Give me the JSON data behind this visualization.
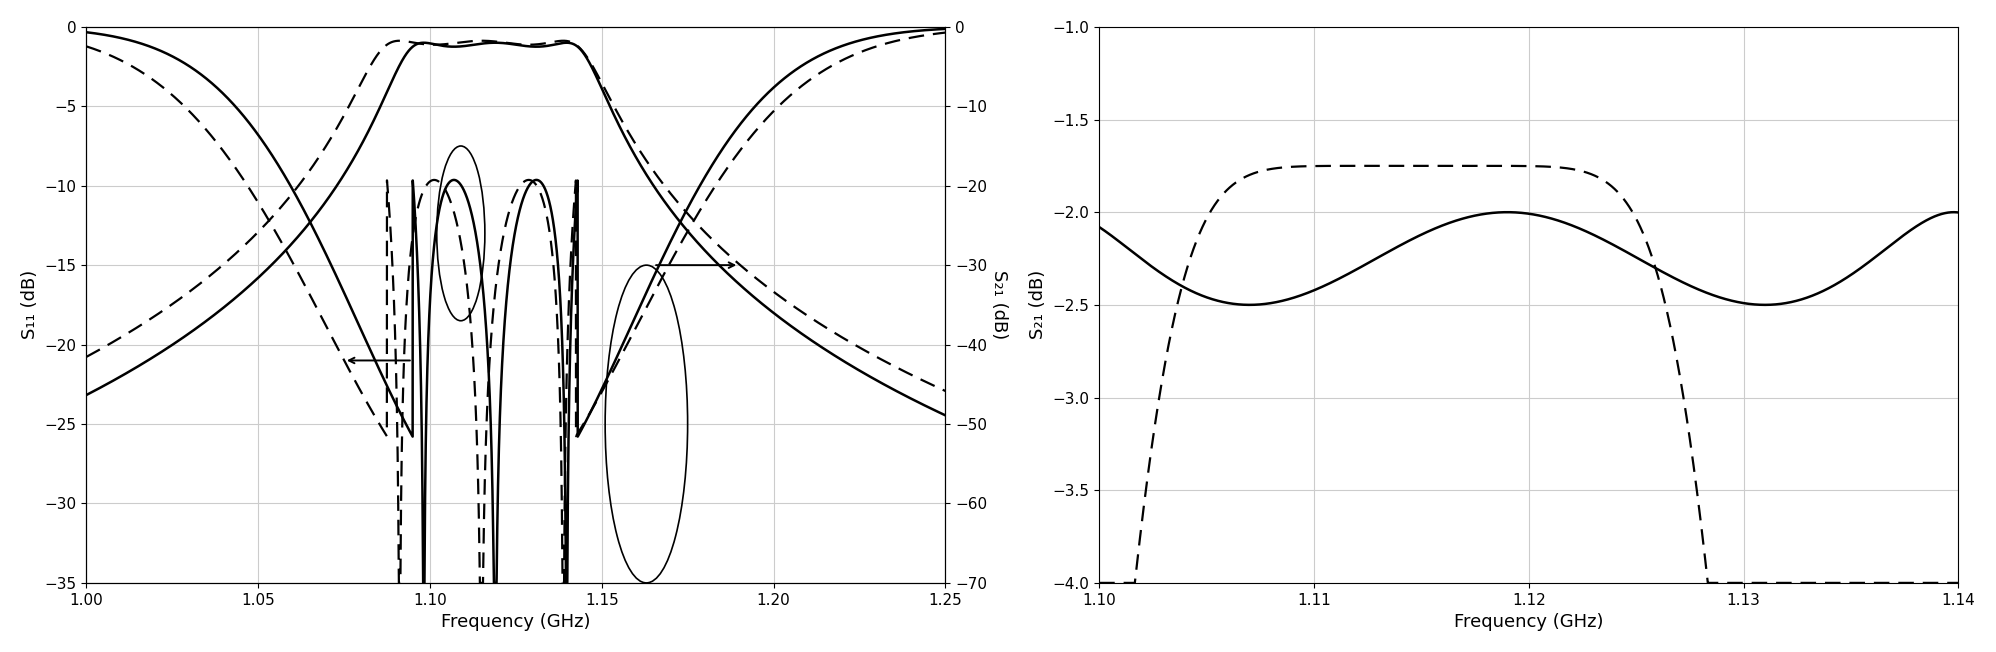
{
  "plot1": {
    "xlim": [
      1.0,
      1.25
    ],
    "yleft_lim": [
      -35,
      0
    ],
    "yright_lim": [
      -70,
      0
    ],
    "yleft_ticks": [
      0,
      -5,
      -10,
      -15,
      -20,
      -25,
      -30,
      -35
    ],
    "yright_ticks": [
      0,
      -10,
      -20,
      -30,
      -40,
      -50,
      -60,
      -70
    ],
    "xticks": [
      1.0,
      1.05,
      1.1,
      1.15,
      1.2,
      1.25
    ],
    "xlabel": "Frequency (GHz)",
    "ylabel_left": "S₁₁ (dB)",
    "ylabel_right": "S₂₁ (dB)"
  },
  "plot2": {
    "xlim": [
      1.1,
      1.14
    ],
    "ylim": [
      -4.0,
      -1.0
    ],
    "xticks": [
      1.1,
      1.11,
      1.12,
      1.13,
      1.14
    ],
    "yticks": [
      -4.0,
      -3.5,
      -3.0,
      -2.5,
      -2.0,
      -1.5,
      -1.0
    ],
    "xlabel": "Frequency (GHz)",
    "ylabel": "S₂₁ (dB)"
  },
  "background_color": "#ffffff",
  "grid_color": "#cccccc"
}
